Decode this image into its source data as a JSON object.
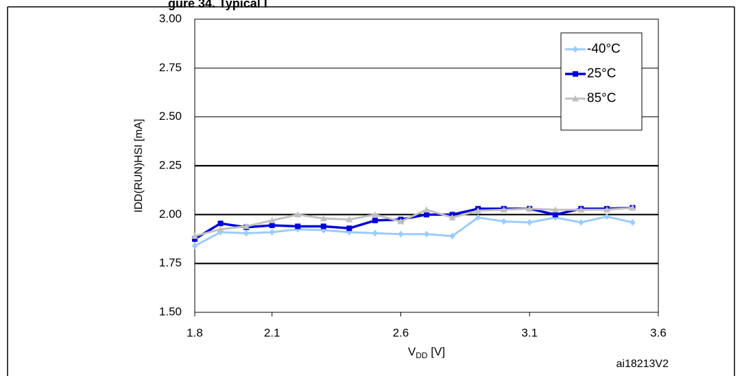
{
  "caption_fragment": "gure 34. Typical I",
  "chart_data": {
    "type": "line",
    "title": "",
    "xlabel": "VDD [V]",
    "xlabel_main": "V",
    "xlabel_sub": "DD",
    "xlabel_unit": " [V]",
    "ylabel": "IDD(RUN)HSI [mA]",
    "xlim": [
      1.8,
      3.6
    ],
    "ylim": [
      1.5,
      3.0
    ],
    "x_ticks": [
      1.8,
      2.1,
      2.6,
      3.1,
      3.6
    ],
    "x_tick_labels": [
      "1.8",
      "2.1",
      "2.6",
      "3.1",
      "3.6"
    ],
    "y_ticks": [
      1.5,
      1.75,
      2.0,
      2.25,
      2.5,
      2.75,
      3.0
    ],
    "y_tick_labels": [
      "1.50",
      "1.75",
      "2.00",
      "2.25",
      "2.50",
      "2.75",
      "3.00"
    ],
    "grid_y_emphasis": [
      1.75,
      2.0,
      2.25
    ],
    "grid": true,
    "legend_position": "top-right",
    "x": [
      1.8,
      1.9,
      2.0,
      2.1,
      2.2,
      2.3,
      2.4,
      2.5,
      2.6,
      2.7,
      2.8,
      2.9,
      3.0,
      3.1,
      3.2,
      3.3,
      3.4,
      3.5
    ],
    "series": [
      {
        "name": "-40°C",
        "color": "#99ccff",
        "marker": "diamond",
        "values": [
          1.84,
          1.91,
          1.905,
          1.91,
          1.925,
          1.92,
          1.91,
          1.905,
          1.9,
          1.9,
          1.89,
          1.985,
          1.965,
          1.96,
          1.985,
          1.96,
          1.99,
          1.96
        ]
      },
      {
        "name": "25°C",
        "color": "#0000dd",
        "marker": "square",
        "values": [
          1.875,
          1.955,
          1.935,
          1.945,
          1.94,
          1.94,
          1.93,
          1.97,
          1.975,
          2.0,
          2.0,
          2.03,
          2.03,
          2.03,
          2.0,
          2.03,
          2.03,
          2.035
        ]
      },
      {
        "name": "85°C",
        "color": "#c0c0c0",
        "marker": "triangle",
        "values": [
          1.89,
          1.925,
          1.94,
          1.97,
          2.0,
          1.98,
          1.975,
          2.0,
          1.965,
          2.025,
          1.985,
          2.02,
          2.025,
          2.03,
          2.025,
          2.025,
          2.025,
          2.035
        ]
      }
    ],
    "annotation": "ai18213V2"
  }
}
